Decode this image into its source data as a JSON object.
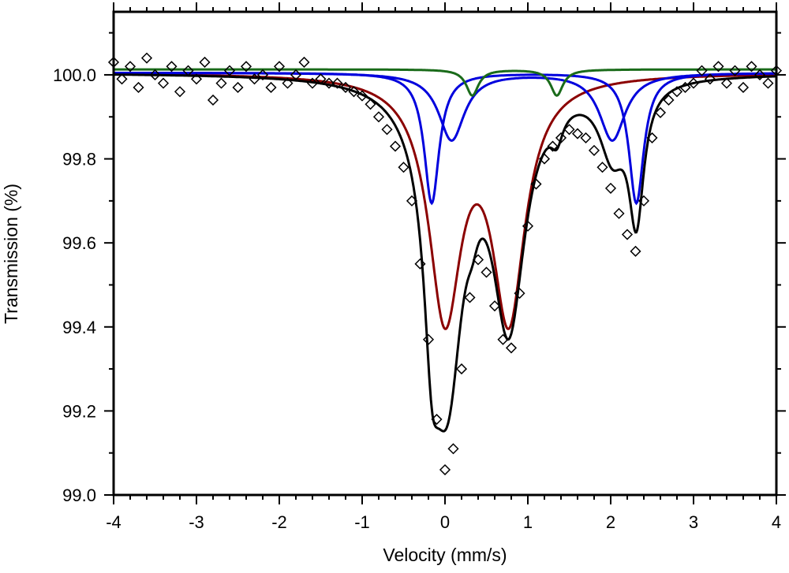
{
  "chart_data": {
    "type": "scatter",
    "title": "",
    "xlabel": "Velocity (mm/s)",
    "ylabel": "Transmission (%)",
    "xlim": [
      -4,
      4
    ],
    "ylim": [
      99.0,
      100.15
    ],
    "xticks": [
      "-4",
      "-3",
      "-2",
      "-1",
      "0",
      "1",
      "2",
      "3",
      "4"
    ],
    "yticks": [
      "99.0",
      "99.2",
      "99.4",
      "99.6",
      "99.8",
      "100.0"
    ],
    "grid": false,
    "legend": "none",
    "observed": {
      "marker": "open-diamond",
      "color": "#000000",
      "x": [
        -4.0,
        -3.9,
        -3.8,
        -3.7,
        -3.6,
        -3.5,
        -3.4,
        -3.3,
        -3.2,
        -3.1,
        -3.0,
        -2.9,
        -2.8,
        -2.7,
        -2.6,
        -2.5,
        -2.4,
        -2.3,
        -2.2,
        -2.1,
        -2.0,
        -1.9,
        -1.8,
        -1.7,
        -1.6,
        -1.5,
        -1.4,
        -1.3,
        -1.2,
        -1.1,
        -1.0,
        -0.9,
        -0.8,
        -0.7,
        -0.6,
        -0.5,
        -0.4,
        -0.3,
        -0.2,
        -0.1,
        0.0,
        0.1,
        0.2,
        0.3,
        0.4,
        0.5,
        0.6,
        0.7,
        0.8,
        0.9,
        1.0,
        1.1,
        1.2,
        1.3,
        1.4,
        1.5,
        1.6,
        1.7,
        1.8,
        1.9,
        2.0,
        2.1,
        2.2,
        2.3,
        2.4,
        2.5,
        2.6,
        2.7,
        2.8,
        2.9,
        3.0,
        3.1,
        3.2,
        3.3,
        3.4,
        3.5,
        3.6,
        3.7,
        3.8,
        3.9,
        4.0
      ],
      "y": [
        100.03,
        99.99,
        100.02,
        99.97,
        100.04,
        100.0,
        99.98,
        100.02,
        99.96,
        100.01,
        99.99,
        100.03,
        99.94,
        99.98,
        100.01,
        99.97,
        100.02,
        99.99,
        100.0,
        99.97,
        100.02,
        99.98,
        100.0,
        100.03,
        99.98,
        99.99,
        99.98,
        99.98,
        99.97,
        99.96,
        99.95,
        99.93,
        99.9,
        99.87,
        99.83,
        99.78,
        99.7,
        99.55,
        99.37,
        99.18,
        99.06,
        99.11,
        99.3,
        99.47,
        99.56,
        99.53,
        99.45,
        99.37,
        99.35,
        99.48,
        99.64,
        99.74,
        99.8,
        99.83,
        99.85,
        99.87,
        99.86,
        99.85,
        99.82,
        99.78,
        99.73,
        99.67,
        99.62,
        99.58,
        99.7,
        99.85,
        99.91,
        99.94,
        99.96,
        99.97,
        99.98,
        100.01,
        99.99,
        100.02,
        99.98,
        100.01,
        99.97,
        100.02,
        100.0,
        99.98,
        100.01
      ]
    },
    "components": [
      {
        "color": "#8b0000",
        "baseline": 100.005,
        "lines": [
          {
            "position": 0.0,
            "depth": 0.56,
            "hwhm": 0.24
          },
          {
            "position": 0.77,
            "depth": 0.56,
            "hwhm": 0.24
          }
        ]
      },
      {
        "color": "#0000dd",
        "baseline": 100.005,
        "lines": [
          {
            "position": -0.16,
            "depth": 0.31,
            "hwhm": 0.11
          },
          {
            "position": 2.31,
            "depth": 0.31,
            "hwhm": 0.11
          }
        ]
      },
      {
        "color": "#0000dd",
        "baseline": 100.005,
        "lines": [
          {
            "position": 0.08,
            "depth": 0.16,
            "hwhm": 0.19
          },
          {
            "position": 2.02,
            "depth": 0.16,
            "hwhm": 0.19
          }
        ]
      },
      {
        "color": "#1a6b1a",
        "baseline": 100.013,
        "lines": [
          {
            "position": 0.33,
            "depth": 0.062,
            "hwhm": 0.09
          },
          {
            "position": 1.35,
            "depth": 0.062,
            "hwhm": 0.09
          }
        ]
      }
    ],
    "total_fit": {
      "color": "#000000",
      "baseline": 100.005
    }
  }
}
